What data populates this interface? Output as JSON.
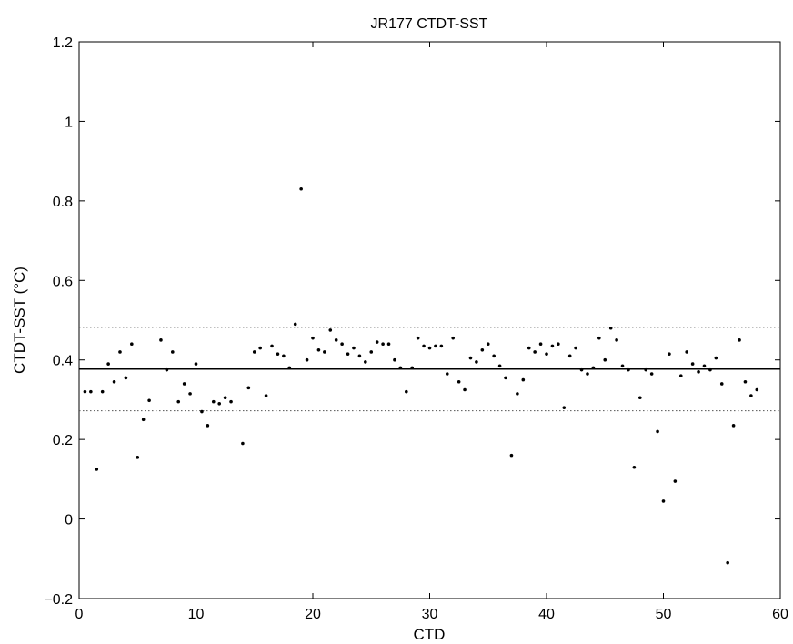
{
  "chart_data": {
    "type": "scatter",
    "title": "JR177 CTDT-SST",
    "xlabel": "CTD",
    "ylabel": "CTDT-SST (°C)",
    "xlim": [
      0,
      60
    ],
    "ylim": [
      -0.2,
      1.2
    ],
    "xticks": [
      "0",
      "10",
      "20",
      "30",
      "40",
      "50",
      "60"
    ],
    "yticks": [
      "−0.2",
      "0",
      "0.2",
      "0.4",
      "0.6",
      "0.8",
      "1",
      "1.2"
    ],
    "grid": false,
    "colors": {
      "points": "#000000",
      "mean_line": "#000000",
      "band_lines": "#555555"
    },
    "reference_lines": [
      {
        "kind": "mean",
        "y": 0.377,
        "style": "solid"
      },
      {
        "kind": "upper",
        "y": 0.482,
        "style": "dotted"
      },
      {
        "kind": "lower",
        "y": 0.272,
        "style": "dotted"
      }
    ],
    "points": {
      "x": [
        0.5,
        1.0,
        1.5,
        2.0,
        2.5,
        3.0,
        3.5,
        4.0,
        4.5,
        5.0,
        5.5,
        6.0,
        7.0,
        7.5,
        8.0,
        8.5,
        9.0,
        9.5,
        10.0,
        10.5,
        11.0,
        11.5,
        12.0,
        12.5,
        13.0,
        14.0,
        14.5,
        15.0,
        15.5,
        16.0,
        16.5,
        17.0,
        17.5,
        18.0,
        18.5,
        19.0,
        19.5,
        20.0,
        20.5,
        21.0,
        21.5,
        22.0,
        22.5,
        23.0,
        23.5,
        24.0,
        24.5,
        25.0,
        25.5,
        26.0,
        26.5,
        27.0,
        27.5,
        28.0,
        28.5,
        29.0,
        29.5,
        30.0,
        30.5,
        31.0,
        31.5,
        32.0,
        32.5,
        33.0,
        33.5,
        34.0,
        34.5,
        35.0,
        35.5,
        36.0,
        36.5,
        37.0,
        37.5,
        38.0,
        38.5,
        39.0,
        39.5,
        40.0,
        40.5,
        41.0,
        41.5,
        42.0,
        42.5,
        43.0,
        43.5,
        44.0,
        44.5,
        45.0,
        45.5,
        46.0,
        46.5,
        47.0,
        47.5,
        48.0,
        48.5,
        49.0,
        49.5,
        50.0,
        50.5,
        51.0,
        51.5,
        52.0,
        52.5,
        53.0,
        53.5,
        54.0,
        54.5,
        55.0,
        55.5,
        56.0,
        56.5,
        57.0,
        57.5,
        58.0
      ],
      "y": [
        0.32,
        0.32,
        0.125,
        0.32,
        0.39,
        0.345,
        0.42,
        0.355,
        0.44,
        0.155,
        0.25,
        0.298,
        0.45,
        0.375,
        0.42,
        0.295,
        0.34,
        0.315,
        0.39,
        0.27,
        0.235,
        0.295,
        0.29,
        0.305,
        0.295,
        0.19,
        0.33,
        0.42,
        0.43,
        0.31,
        0.435,
        0.415,
        0.41,
        0.38,
        0.49,
        0.83,
        0.4,
        0.455,
        0.425,
        0.42,
        0.475,
        0.45,
        0.44,
        0.415,
        0.43,
        0.41,
        0.395,
        0.42,
        0.445,
        0.44,
        0.44,
        0.4,
        0.38,
        0.32,
        0.38,
        0.455,
        0.435,
        0.43,
        0.435,
        0.435,
        0.365,
        0.455,
        0.345,
        0.325,
        0.405,
        0.395,
        0.425,
        0.44,
        0.41,
        0.385,
        0.355,
        0.16,
        0.315,
        0.35,
        0.43,
        0.42,
        0.44,
        0.415,
        0.435,
        0.44,
        0.28,
        0.41,
        0.43,
        0.375,
        0.365,
        0.38,
        0.455,
        0.4,
        0.48,
        0.45,
        0.385,
        0.375,
        0.13,
        0.305,
        0.375,
        0.365,
        0.22,
        0.045,
        0.415,
        0.095,
        0.36,
        0.42,
        0.39,
        0.37,
        0.385,
        0.375,
        0.405,
        0.34,
        -0.11,
        0.235,
        0.45,
        0.345,
        0.31,
        0.325
      ]
    }
  }
}
